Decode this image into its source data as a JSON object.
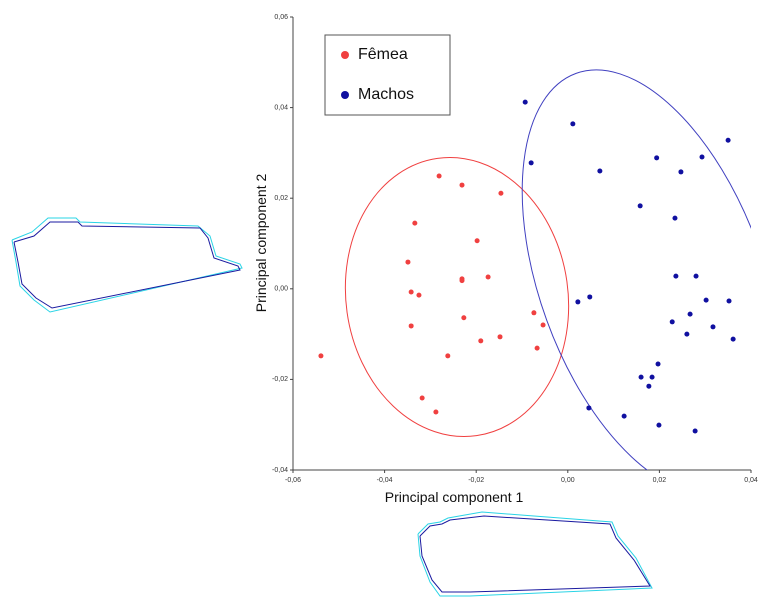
{
  "chart_data": {
    "type": "scatter",
    "xlabel": "Principal component 1",
    "ylabel": "Principal component 2",
    "xlim": [
      -0.06,
      0.04
    ],
    "ylim": [
      -0.04,
      0.06
    ],
    "xticks": [
      {
        "value": -0.06,
        "label": "-0,06"
      },
      {
        "value": -0.04,
        "label": "-0,04"
      },
      {
        "value": -0.02,
        "label": "-0,02"
      },
      {
        "value": 0,
        "label": "0,00"
      },
      {
        "value": 0.02,
        "label": "0,02"
      },
      {
        "value": 0.04,
        "label": "0,04"
      }
    ],
    "yticks": [
      {
        "value": -0.04,
        "label": "-0,04"
      },
      {
        "value": -0.02,
        "label": "-0,02"
      },
      {
        "value": 0,
        "label": "0,00"
      },
      {
        "value": 0.02,
        "label": "0,02"
      },
      {
        "value": 0.04,
        "label": "0,04"
      },
      {
        "value": 0.06,
        "label": "0,06"
      }
    ],
    "series": [
      {
        "name": "Fêmea",
        "color": "#f04040",
        "x": [
          -0.0539,
          -0.0281,
          -0.0231,
          -0.0146,
          -0.0334,
          -0.0198,
          -0.0349,
          -0.0231,
          -0.0174,
          -0.0231,
          -0.0342,
          -0.0325,
          -0.0227,
          -0.0074,
          -0.0342,
          -0.0148,
          -0.019,
          -0.0054,
          -0.0067,
          -0.0262,
          -0.0318,
          -0.0288
        ],
        "values": [
          -0.0148,
          0.0249,
          0.0229,
          0.0211,
          0.0145,
          0.0106,
          0.0059,
          0.0022,
          0.0026,
          0.0018,
          -0.0007,
          -0.0014,
          -0.0064,
          -0.0053,
          -0.0082,
          -0.0106,
          -0.0115,
          -0.008,
          -0.0131,
          -0.0148,
          -0.0241,
          -0.0272
        ]
      },
      {
        "name": "Machos",
        "color": "#1010a0",
        "x": [
          -0.0093,
          0.0011,
          -0.008,
          0.007,
          0.0194,
          0.0293,
          0.0247,
          0.0158,
          0.0234,
          0.035,
          0.0236,
          0.028,
          0.0302,
          0.0352,
          0.0267,
          0.0048,
          0.0022,
          0.0228,
          0.026,
          0.0317,
          0.0361,
          0.0197,
          0.016,
          0.0184,
          0.0177,
          0.0046,
          0.0123,
          0.0199,
          0.0278
        ],
        "values": [
          0.0412,
          0.0364,
          0.0278,
          0.026,
          0.0289,
          0.0291,
          0.0258,
          0.0183,
          0.0156,
          0.0328,
          0.0028,
          0.0028,
          -0.0025,
          -0.0027,
          -0.0056,
          -0.0018,
          -0.0029,
          -0.0073,
          -0.01,
          -0.0084,
          -0.0111,
          -0.0166,
          -0.0195,
          -0.0195,
          -0.0215,
          -0.0263,
          -0.0281,
          -0.0301,
          -0.0314
        ]
      }
    ]
  }
}
